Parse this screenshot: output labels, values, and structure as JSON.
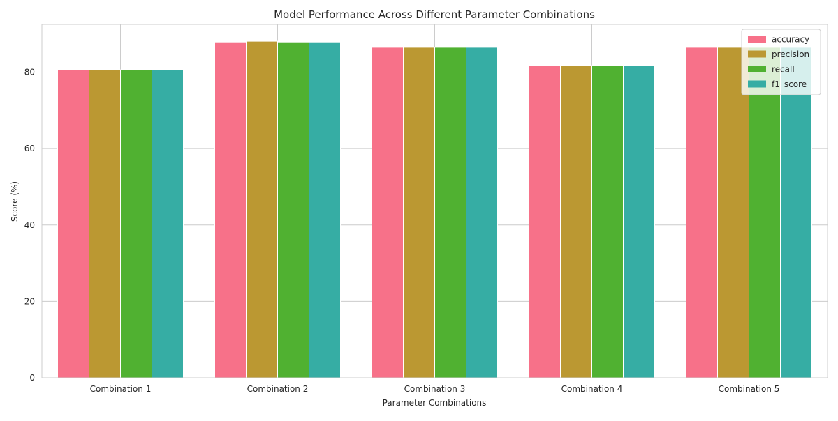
{
  "chart_data": {
    "type": "bar",
    "title": "Model Performance Across Different Parameter Combinations",
    "xlabel": "Parameter Combinations",
    "ylabel": "Score (%)",
    "ylim": [
      0,
      92.5
    ],
    "yticks": [
      0,
      20,
      40,
      60,
      80
    ],
    "categories": [
      "Combination 1",
      "Combination 2",
      "Combination 3",
      "Combination 4",
      "Combination 5"
    ],
    "series": [
      {
        "name": "accuracy",
        "color": "#f77189",
        "values": [
          80.6,
          87.9,
          86.5,
          81.7,
          86.5
        ]
      },
      {
        "name": "precision",
        "color": "#bb9832",
        "values": [
          80.6,
          88.1,
          86.5,
          81.7,
          86.5
        ]
      },
      {
        "name": "recall",
        "color": "#50b131",
        "values": [
          80.6,
          87.9,
          86.5,
          81.7,
          86.5
        ]
      },
      {
        "name": "f1_score",
        "color": "#36ada4",
        "values": [
          80.6,
          87.9,
          86.5,
          81.7,
          86.5
        ]
      }
    ],
    "grid": true,
    "legend_position": "top-right"
  }
}
